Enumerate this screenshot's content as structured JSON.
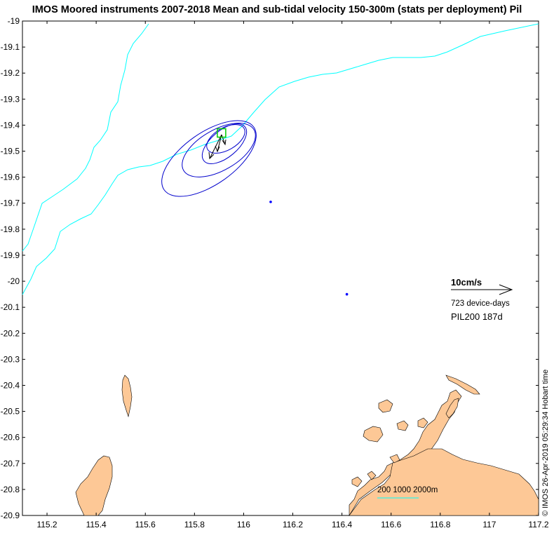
{
  "title": "IMOS Moored instruments 2007-2018 Mean and sub-tidal velocity 150-300m (stats per deployment) Pil",
  "axes": {
    "x_ticks": [
      "115.2",
      "115.4",
      "115.6",
      "115.8",
      "116",
      "116.2",
      "116.4",
      "116.6",
      "116.8",
      "117",
      "117.2"
    ],
    "y_ticks": [
      "-19",
      "-19.1",
      "-19.2",
      "-19.3",
      "-19.4",
      "-19.5",
      "-19.6",
      "-19.7",
      "-19.8",
      "-19.9",
      "-20",
      "-20.1",
      "-20.2",
      "-20.3",
      "-20.4",
      "-20.5",
      "-20.6",
      "-20.7",
      "-20.8",
      "-20.9"
    ],
    "xlim": [
      115.1,
      117.2
    ],
    "ylim": [
      -20.9,
      -19.0
    ]
  },
  "legend": {
    "scale_label": "10cm/s",
    "device_days": "723 device-days",
    "station_label": "PIL200 187d"
  },
  "bathymetry_label": "200 1000 2000m",
  "copyright": "© IMOS 26-Apr-2019 05:29:34 Hobart time",
  "colors": {
    "land": "#FDC896",
    "isobath": "#00FFFF",
    "ellipse": "#0000CC",
    "mooring": "#00CC00",
    "point": "#0000FF"
  },
  "features": {
    "moorings": [
      {
        "lon": 115.91,
        "lat": -19.43
      }
    ],
    "points": [
      {
        "lon": 116.11,
        "lat": -19.695
      },
      {
        "lon": 116.42,
        "lat": -20.05
      }
    ]
  }
}
